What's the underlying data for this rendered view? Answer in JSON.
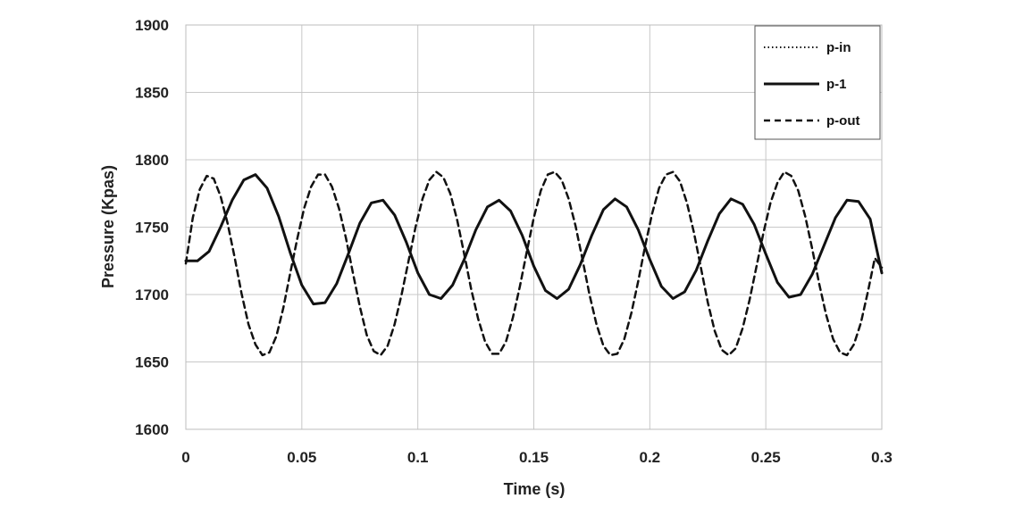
{
  "chart_data": {
    "type": "line",
    "title": "",
    "xlabel": "Time (s)",
    "ylabel": "Pressure (Kpas)",
    "xlim": [
      0,
      0.3
    ],
    "ylim": [
      1600,
      1900
    ],
    "x_ticks": [
      "0",
      "0.05",
      "0.1",
      "0.15",
      "0.2",
      "0.25",
      "0.3"
    ],
    "y_ticks": [
      "1600",
      "1650",
      "1700",
      "1750",
      "1800",
      "1850",
      "1900"
    ],
    "grid": true,
    "legend_position": "top-right",
    "series": [
      {
        "name": "p-in",
        "style": "dotted",
        "color": "#111111",
        "x": [
          0,
          0.005,
          0.01,
          0.015,
          0.02,
          0.025,
          0.03,
          0.035,
          0.04,
          0.045,
          0.05,
          0.055,
          0.06,
          0.065,
          0.07,
          0.075,
          0.08,
          0.085,
          0.09,
          0.095,
          0.1,
          0.105,
          0.11,
          0.115,
          0.12,
          0.125,
          0.13,
          0.135,
          0.14,
          0.145,
          0.15,
          0.155,
          0.16,
          0.165,
          0.17,
          0.175,
          0.18,
          0.185,
          0.19,
          0.195,
          0.2,
          0.205,
          0.21,
          0.215,
          0.22,
          0.225,
          0.23,
          0.235,
          0.24,
          0.245,
          0.25,
          0.255,
          0.26,
          0.265,
          0.27,
          0.275,
          0.28,
          0.285,
          0.29,
          0.295,
          0.3
        ],
        "y": [
          1725,
          1725,
          1732,
          1750,
          1770,
          1785,
          1789,
          1779,
          1758,
          1731,
          1707,
          1693,
          1694,
          1708,
          1730,
          1753,
          1768,
          1770,
          1759,
          1739,
          1716,
          1700,
          1697,
          1707,
          1726,
          1748,
          1765,
          1770,
          1762,
          1744,
          1721,
          1703,
          1697,
          1704,
          1722,
          1744,
          1763,
          1771,
          1765,
          1748,
          1726,
          1706,
          1697,
          1702,
          1718,
          1740,
          1760,
          1771,
          1767,
          1752,
          1730,
          1709,
          1698,
          1700,
          1715,
          1736,
          1757,
          1770,
          1769,
          1756,
          1716
        ]
      },
      {
        "name": "p-1",
        "style": "solid",
        "color": "#111111",
        "x": [
          0,
          0.005,
          0.01,
          0.015,
          0.02,
          0.025,
          0.03,
          0.035,
          0.04,
          0.045,
          0.05,
          0.055,
          0.06,
          0.065,
          0.07,
          0.075,
          0.08,
          0.085,
          0.09,
          0.095,
          0.1,
          0.105,
          0.11,
          0.115,
          0.12,
          0.125,
          0.13,
          0.135,
          0.14,
          0.145,
          0.15,
          0.155,
          0.16,
          0.165,
          0.17,
          0.175,
          0.18,
          0.185,
          0.19,
          0.195,
          0.2,
          0.205,
          0.21,
          0.215,
          0.22,
          0.225,
          0.23,
          0.235,
          0.24,
          0.245,
          0.25,
          0.255,
          0.26,
          0.265,
          0.27,
          0.275,
          0.28,
          0.285,
          0.29,
          0.295,
          0.3
        ],
        "y": [
          1725,
          1725,
          1732,
          1750,
          1770,
          1785,
          1789,
          1779,
          1758,
          1731,
          1707,
          1693,
          1694,
          1708,
          1730,
          1753,
          1768,
          1770,
          1759,
          1739,
          1716,
          1700,
          1697,
          1707,
          1726,
          1748,
          1765,
          1770,
          1762,
          1744,
          1721,
          1703,
          1697,
          1704,
          1722,
          1744,
          1763,
          1771,
          1765,
          1748,
          1726,
          1706,
          1697,
          1702,
          1718,
          1740,
          1760,
          1771,
          1767,
          1752,
          1730,
          1709,
          1698,
          1700,
          1715,
          1736,
          1757,
          1770,
          1769,
          1756,
          1716
        ]
      },
      {
        "name": "p-out",
        "style": "dashed",
        "color": "#111111",
        "x": [
          0,
          0.003,
          0.006,
          0.009,
          0.012,
          0.015,
          0.018,
          0.021,
          0.024,
          0.027,
          0.03,
          0.033,
          0.036,
          0.039,
          0.042,
          0.045,
          0.048,
          0.051,
          0.054,
          0.057,
          0.06,
          0.063,
          0.066,
          0.069,
          0.072,
          0.075,
          0.078,
          0.081,
          0.084,
          0.087,
          0.09,
          0.093,
          0.096,
          0.099,
          0.102,
          0.105,
          0.108,
          0.111,
          0.114,
          0.117,
          0.12,
          0.123,
          0.126,
          0.129,
          0.132,
          0.135,
          0.138,
          0.141,
          0.144,
          0.147,
          0.15,
          0.153,
          0.156,
          0.159,
          0.162,
          0.165,
          0.168,
          0.171,
          0.174,
          0.177,
          0.18,
          0.183,
          0.186,
          0.189,
          0.192,
          0.195,
          0.198,
          0.201,
          0.204,
          0.207,
          0.21,
          0.213,
          0.216,
          0.219,
          0.222,
          0.225,
          0.228,
          0.231,
          0.234,
          0.237,
          0.24,
          0.243,
          0.246,
          0.249,
          0.252,
          0.255,
          0.258,
          0.261,
          0.264,
          0.267,
          0.27,
          0.273,
          0.276,
          0.279,
          0.282,
          0.285,
          0.288,
          0.291,
          0.294,
          0.297,
          0.3
        ],
        "y": [
          1723,
          1757,
          1778,
          1788,
          1786,
          1773,
          1753,
          1728,
          1701,
          1678,
          1663,
          1655,
          1657,
          1669,
          1690,
          1716,
          1741,
          1764,
          1780,
          1789,
          1789,
          1780,
          1764,
          1742,
          1716,
          1691,
          1670,
          1658,
          1655,
          1662,
          1678,
          1700,
          1725,
          1750,
          1771,
          1785,
          1791,
          1787,
          1775,
          1755,
          1730,
          1704,
          1682,
          1665,
          1656,
          1656,
          1665,
          1683,
          1706,
          1732,
          1757,
          1777,
          1789,
          1791,
          1785,
          1771,
          1751,
          1726,
          1700,
          1678,
          1662,
          1655,
          1656,
          1667,
          1686,
          1710,
          1736,
          1760,
          1779,
          1789,
          1791,
          1784,
          1768,
          1746,
          1720,
          1694,
          1673,
          1659,
          1655,
          1660,
          1675,
          1696,
          1721,
          1746,
          1768,
          1783,
          1791,
          1788,
          1777,
          1758,
          1734,
          1708,
          1685,
          1667,
          1657,
          1655,
          1663,
          1679,
          1702,
          1727,
          1720
        ]
      }
    ]
  }
}
